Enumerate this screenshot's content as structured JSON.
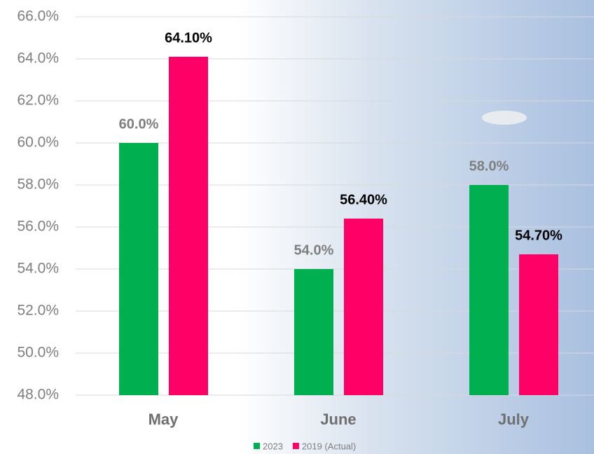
{
  "chart_data": {
    "type": "bar",
    "categories": [
      "May",
      "June",
      "July"
    ],
    "series": [
      {
        "name": "2023",
        "color": "#00b050",
        "values": [
          60,
          54,
          58
        ],
        "value_labels": [
          "60.0%",
          "54.0%",
          "58.0%"
        ]
      },
      {
        "name": "2019 (Actual)",
        "color": "#ff0066",
        "values": [
          64.1,
          56.4,
          54.7
        ],
        "value_labels": [
          "64.10%",
          "56.40%",
          "54.70%"
        ]
      }
    ],
    "ylim": [
      48,
      66
    ],
    "yticks": [
      {
        "value": 48,
        "label": "48.0%"
      },
      {
        "value": 50,
        "label": "50.0%"
      },
      {
        "value": 52,
        "label": "52.0%"
      },
      {
        "value": 54,
        "label": "54.0%"
      },
      {
        "value": 56,
        "label": "56.0%"
      },
      {
        "value": 58,
        "label": "58.0%"
      },
      {
        "value": 60,
        "label": "60.0%"
      },
      {
        "value": 62,
        "label": "62.0%"
      },
      {
        "value": 64,
        "label": "64.0%"
      },
      {
        "value": 66,
        "label": "66.0%"
      }
    ],
    "grid": true,
    "legend": "bottom"
  }
}
